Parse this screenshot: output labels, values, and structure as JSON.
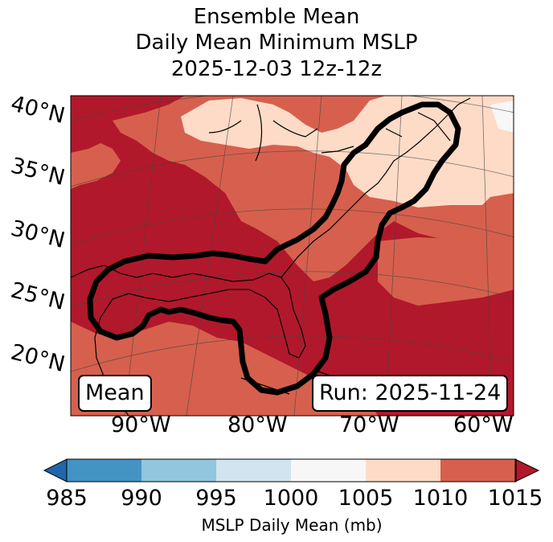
{
  "title": {
    "line1": "Ensemble Mean",
    "line2": "Daily Mean Minimum MSLP",
    "line3": "2025-12-03 12z-12z"
  },
  "map": {
    "latitude_labels": [
      "40°N",
      "35°N",
      "30°N",
      "25°N",
      "20°N"
    ],
    "longitude_labels": [
      "90°W",
      "80°W",
      "70°W",
      "60°W"
    ],
    "left_box": "Mean",
    "right_box": "Run: 2025-11-24"
  },
  "colorbar": {
    "label": "MSLP Daily Mean (mb)",
    "ticks": [
      "985",
      "990",
      "995",
      "1000",
      "1005",
      "1010",
      "1015"
    ],
    "colors": [
      "#2166ac",
      "#4393c3",
      "#92c5de",
      "#d1e5f0",
      "#f7f7f7",
      "#fddbc7",
      "#d6604d",
      "#b2182b"
    ]
  }
}
